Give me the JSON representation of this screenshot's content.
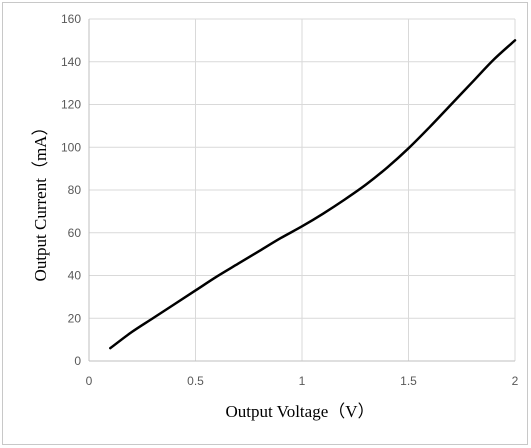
{
  "chart_data": {
    "type": "line",
    "xlabel": "Output Voltage（V）",
    "ylabel": "Output Current（mA）",
    "xlim": [
      0,
      2
    ],
    "ylim": [
      0,
      160
    ],
    "x_ticks": [
      "0",
      "0.5",
      "1",
      "1.5",
      "2"
    ],
    "y_ticks": [
      "0",
      "20",
      "40",
      "60",
      "80",
      "100",
      "120",
      "140",
      "160"
    ],
    "grid": true,
    "legend": "none",
    "series": [
      {
        "color": "#000000",
        "x": [
          0.1,
          0.2,
          0.3,
          0.4,
          0.5,
          0.6,
          0.7,
          0.8,
          0.9,
          1.0,
          1.1,
          1.2,
          1.3,
          1.4,
          1.5,
          1.6,
          1.7,
          1.8,
          1.9,
          2.0
        ],
        "y": [
          6,
          13.5,
          20,
          26.5,
          33,
          39.5,
          45.5,
          51.5,
          57.5,
          63,
          69,
          75.5,
          82.5,
          90.5,
          99.5,
          109.5,
          120,
          130.5,
          141,
          150
        ]
      }
    ]
  }
}
